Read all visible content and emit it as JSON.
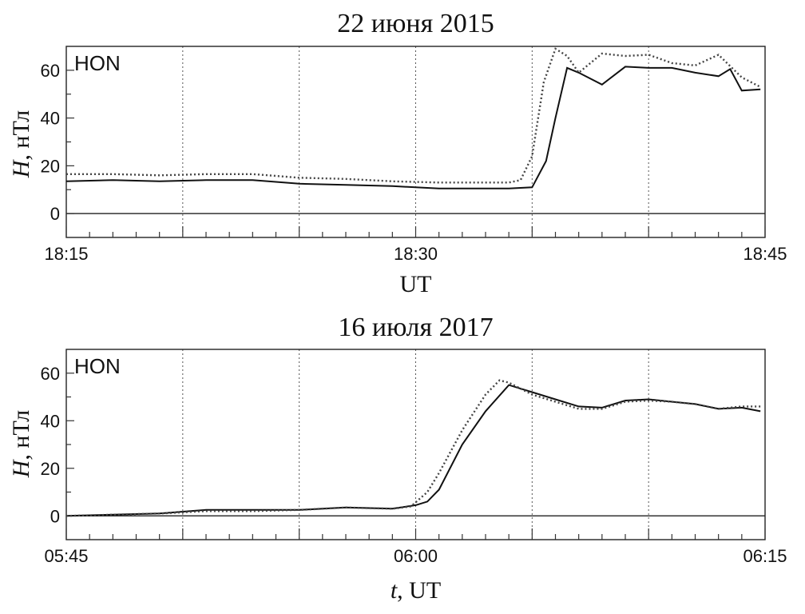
{
  "chart_data": [
    {
      "type": "line",
      "title": "22 июня 2015",
      "station": "HON",
      "ylabel_italic": "H",
      "ylabel_rest": ", нТл",
      "xlabel_italic": "",
      "xlabel_rest": "UT",
      "x_tick_labels": [
        "18:15",
        "18:30",
        "18:45"
      ],
      "xlim": [
        0,
        30
      ],
      "ylim": [
        -10,
        70
      ],
      "y_ticks": [
        0,
        20,
        40,
        60
      ],
      "grid": "vertical dotted every 5 min",
      "series": [
        {
          "style": "solid",
          "x": [
            0,
            2,
            4,
            6,
            8,
            10,
            12,
            14,
            16,
            18,
            19,
            20,
            20.6,
            21,
            21.5,
            22,
            23,
            24,
            25,
            26,
            27,
            28,
            28.5,
            29,
            29.8
          ],
          "y": [
            13.5,
            14,
            13.5,
            14,
            14,
            12.5,
            12,
            11.5,
            10.5,
            10.5,
            10.5,
            11,
            22,
            40,
            61,
            59,
            54,
            61.5,
            61,
            61,
            59,
            57.5,
            60.5,
            51.5,
            52
          ]
        },
        {
          "style": "dotted",
          "x": [
            0,
            2,
            4,
            6,
            8,
            10,
            12,
            14,
            16,
            18,
            19,
            19.5,
            20,
            20.5,
            21,
            21.5,
            22,
            23,
            24,
            25,
            26,
            27,
            28,
            29,
            29.8
          ],
          "y": [
            16.5,
            16.5,
            16,
            16.5,
            16.5,
            15,
            14.5,
            13.5,
            13,
            13,
            13,
            14,
            24,
            55,
            69,
            66,
            59,
            67,
            66,
            66.5,
            63,
            62,
            66.5,
            57,
            53
          ]
        }
      ]
    },
    {
      "type": "line",
      "title": "16 июля 2017",
      "station": "HON",
      "ylabel_italic": "H",
      "ylabel_rest": ", нТл",
      "xlabel_italic": "t",
      "xlabel_rest": ", UT",
      "x_tick_labels": [
        "05:45",
        "06:00",
        "06:15"
      ],
      "xlim": [
        0,
        30
      ],
      "ylim": [
        -10,
        70
      ],
      "y_ticks": [
        0,
        20,
        40,
        60
      ],
      "grid": "vertical dotted every 5 min",
      "series": [
        {
          "style": "solid",
          "x": [
            0,
            2,
            4,
            6,
            8,
            10,
            12,
            14,
            15,
            15.5,
            16,
            17,
            18,
            19,
            20,
            21,
            22,
            23,
            24,
            25,
            26,
            27,
            28,
            29,
            29.8
          ],
          "y": [
            0,
            0.5,
            1,
            2.5,
            2.5,
            2.5,
            3.5,
            3,
            4.5,
            6,
            11,
            30,
            44,
            55,
            52,
            49,
            46,
            45.5,
            48.5,
            49,
            48,
            47,
            45,
            45.5,
            44
          ]
        },
        {
          "style": "dotted",
          "x": [
            0,
            2,
            4,
            6,
            8,
            10,
            12,
            14,
            14.8,
            15.5,
            16,
            17,
            18,
            18.6,
            19,
            20,
            21,
            22,
            23,
            24,
            25,
            26,
            27,
            28,
            29,
            29.8
          ],
          "y": [
            0,
            0.5,
            1,
            2,
            2,
            2.5,
            3.5,
            3,
            4,
            10,
            18,
            36,
            51,
            57,
            56,
            51,
            48,
            45,
            45,
            48,
            48.5,
            48,
            47,
            45,
            46,
            46
          ]
        }
      ]
    }
  ]
}
